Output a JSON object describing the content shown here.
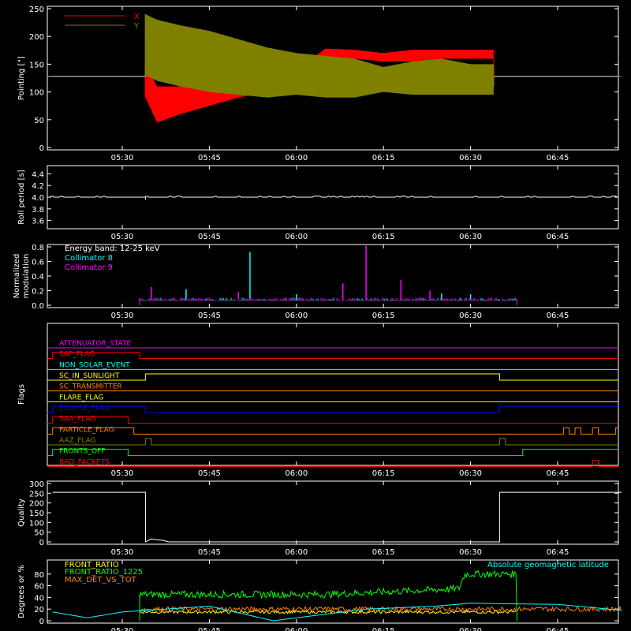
{
  "chart_data": [
    {
      "type": "line",
      "ylabel": "Pointing [\"]",
      "ylim": [
        0,
        250
      ],
      "yticks": [
        0,
        50,
        100,
        150,
        200,
        250
      ],
      "xticks": [
        "05:30",
        "05:45",
        "06:00",
        "06:15",
        "06:30",
        "06:45"
      ],
      "legend": "top-left",
      "series": [
        {
          "name": "X",
          "color": "#ff0000",
          "x": [
            "05:18",
            "05:34",
            "05:34",
            "05:36",
            "05:40",
            "05:45",
            "05:50",
            "05:55",
            "06:00",
            "06:05",
            "06:10",
            "06:15",
            "06:20",
            "06:25",
            "06:30",
            "06:34",
            "06:34",
            "06:56"
          ],
          "y": [
            128,
            128,
            140,
            70,
            82,
            92,
            104,
            116,
            138,
            162,
            162,
            162,
            166,
            170,
            166,
            160,
            128,
            128
          ],
          "band": [
            0,
            0,
            90,
            45,
            60,
            75,
            90,
            100,
            110,
            150,
            160,
            155,
            155,
            160,
            160,
            160,
            0,
            0
          ],
          "band_hi": [
            0,
            0,
            150,
            110,
            110,
            110,
            120,
            130,
            140,
            178,
            176,
            170,
            176,
            176,
            176,
            176,
            0,
            0
          ]
        },
        {
          "name": "Y",
          "color": "#808000",
          "x": [
            "05:18",
            "05:34",
            "05:34",
            "05:36",
            "05:40",
            "05:45",
            "05:50",
            "05:55",
            "06:00",
            "06:05",
            "06:10",
            "06:15",
            "06:20",
            "06:25",
            "06:30",
            "06:34",
            "06:34",
            "06:56"
          ],
          "y": [
            128,
            128,
            200,
            190,
            180,
            170,
            158,
            145,
            130,
            115,
            110,
            120,
            110,
            110,
            110,
            110,
            128,
            128
          ],
          "band": [
            0,
            0,
            130,
            120,
            110,
            100,
            95,
            90,
            95,
            90,
            90,
            100,
            95,
            95,
            95,
            95,
            0,
            0
          ],
          "band_hi": [
            0,
            0,
            240,
            230,
            220,
            210,
            195,
            180,
            170,
            165,
            160,
            145,
            155,
            160,
            150,
            150,
            0,
            0
          ]
        }
      ]
    },
    {
      "type": "line",
      "ylabel": "Roll period [s]",
      "ylim": [
        3.5,
        4.5
      ],
      "yticks": [
        "3.6",
        "3.8",
        "4.0",
        "4.2",
        "4.4"
      ],
      "xticks": [
        "05:30",
        "05:45",
        "06:00",
        "06:15",
        "06:30",
        "06:45"
      ],
      "series": [
        {
          "name": "",
          "color": "#ffffff",
          "x": [
            "05:18",
            "05:34",
            "05:34",
            "06:40",
            "06:56"
          ],
          "y": [
            4.0,
            4.0,
            3.96,
            4.0,
            4.0
          ]
        }
      ]
    },
    {
      "type": "line",
      "ylabel": "Normalized modulation",
      "ylim": [
        0,
        0.8
      ],
      "yticks": [
        "0.0",
        "0.2",
        "0.4",
        "0.6",
        "0.8"
      ],
      "xticks": [
        "05:30",
        "05:45",
        "06:00",
        "06:15",
        "06:30",
        "06:45"
      ],
      "legend": "top-left",
      "title_note": "Energy band: 12-25 keV",
      "series": [
        {
          "name": "Collimator 8",
          "color": "#00ffff",
          "x": [
            "05:33",
            "06:38"
          ],
          "baseline": 0.08,
          "spikes": [
            [
              "05:41",
              0.22
            ],
            [
              "05:52",
              0.73
            ],
            [
              "06:00",
              0.15
            ],
            [
              "06:25",
              0.16
            ],
            [
              "06:30",
              0.15
            ]
          ]
        },
        {
          "name": "Collimator 9",
          "color": "#ff00ff",
          "x": [
            "05:33",
            "06:38"
          ],
          "baseline": 0.08,
          "spikes": [
            [
              "05:35",
              0.25
            ],
            [
              "05:50",
              0.18
            ],
            [
              "06:08",
              0.3
            ],
            [
              "06:12",
              0.82
            ],
            [
              "06:18",
              0.35
            ],
            [
              "06:23",
              0.2
            ]
          ]
        }
      ]
    },
    {
      "type": "line",
      "ylabel": "Flags",
      "xticks": [
        "05:30",
        "05:45",
        "06:00",
        "06:15",
        "06:30",
        "06:45"
      ],
      "series": [
        {
          "name": "ATTENUATOR_STATE",
          "color": "#ff00ff",
          "steps": []
        },
        {
          "name": "SAP_FLAG",
          "color": "#ff0000",
          "steps": [
            [
              "05:18",
              1
            ],
            [
              "05:33",
              0
            ]
          ]
        },
        {
          "name": "NON_SOLAR_EVENT",
          "color": "#00ffff",
          "steps": []
        },
        {
          "name": "SC_IN_SUNLIGHT",
          "color": "#ffff00",
          "steps": [
            [
              "05:18",
              0
            ],
            [
              "05:34",
              1
            ],
            [
              "06:35",
              0
            ]
          ]
        },
        {
          "name": "SC_TRANSMITTER",
          "color": "#ff8000",
          "steps": []
        },
        {
          "name": "FLARE_FLAG",
          "color": "#ffff00",
          "steps": []
        },
        {
          "name": "ECLIPSE_FLAG",
          "color": "#0000ff",
          "steps": [
            [
              "05:18",
              1
            ],
            [
              "05:34",
              0
            ],
            [
              "06:35",
              1
            ]
          ]
        },
        {
          "name": "SAA_FLAG",
          "color": "#ff0000",
          "steps": [
            [
              "05:18",
              1
            ],
            [
              "05:31",
              0
            ]
          ]
        },
        {
          "name": "PARTICLE_FLAG",
          "color": "#ff8000",
          "steps": [
            [
              "05:18",
              1
            ],
            [
              "05:32",
              0
            ],
            [
              "06:46",
              1
            ],
            [
              "06:47",
              0
            ],
            [
              "06:48",
              1
            ],
            [
              "06:49",
              0
            ],
            [
              "06:51",
              1
            ],
            [
              "06:52",
              0
            ],
            [
              "06:55",
              1
            ]
          ]
        },
        {
          "name": "AAZ_FLAG",
          "color": "#808000",
          "steps": [
            [
              "05:34",
              1
            ],
            [
              "05:35",
              0
            ],
            [
              "06:35",
              1
            ],
            [
              "06:36",
              0
            ]
          ]
        },
        {
          "name": "FRONTS_OFF",
          "color": "#00ff00",
          "steps": [
            [
              "05:18",
              1
            ],
            [
              "05:31",
              0
            ],
            [
              "06:39",
              1
            ]
          ]
        },
        {
          "name": "BAD_PACKETS",
          "color": "#ff0000",
          "steps": [
            [
              "06:51",
              1
            ],
            [
              "06:52",
              0
            ]
          ]
        }
      ]
    },
    {
      "type": "line",
      "ylabel": "Quality",
      "ylim": [
        0,
        300
      ],
      "yticks": [
        0,
        50,
        100,
        150,
        200,
        250,
        300
      ],
      "xticks": [
        "05:30",
        "05:45",
        "06:00",
        "06:15",
        "06:30",
        "06:45"
      ],
      "series": [
        {
          "name": "",
          "color": "#ffffff",
          "x": [
            "05:18",
            "05:34",
            "05:34",
            "05:35",
            "05:36",
            "05:37",
            "05:38",
            "06:35",
            "06:35",
            "06:56"
          ],
          "y": [
            255,
            255,
            0,
            15,
            10,
            8,
            0,
            0,
            255,
            255
          ]
        }
      ]
    },
    {
      "type": "line",
      "ylabel": "Degrees or %",
      "ylim": [
        0,
        100
      ],
      "yticks": [
        0,
        20,
        40,
        60,
        80
      ],
      "xticks": [
        "05:30",
        "05:45",
        "06:00",
        "06:15",
        "06:30",
        "06:45"
      ],
      "legend": "top-left",
      "series": [
        {
          "name": "FRONT_RATIO",
          "color": "#ffff00",
          "x": [
            "05:33",
            "06:38"
          ],
          "y": [
            15,
            15
          ],
          "noise": 5
        },
        {
          "name": "FRONT_RATIO_1225",
          "color": "#00ff00",
          "x": [
            "05:33",
            "06:05",
            "06:28",
            "06:29",
            "06:38"
          ],
          "y": [
            45,
            45,
            55,
            80,
            80
          ],
          "noise": 12
        },
        {
          "name": "MAX_DET_VS_TOT",
          "color": "#ff8000",
          "x": [
            "05:33",
            "06:56"
          ],
          "y": [
            20,
            20
          ],
          "noise": 8
        },
        {
          "name": "Absolute geomagnetic latitude",
          "color": "#00ffff",
          "x": [
            "05:18",
            "05:24",
            "05:30",
            "05:45",
            "05:56",
            "06:12",
            "06:24",
            "06:30",
            "06:45",
            "06:56"
          ],
          "y": [
            15,
            5,
            15,
            25,
            0,
            20,
            25,
            30,
            28,
            18
          ]
        }
      ]
    }
  ]
}
